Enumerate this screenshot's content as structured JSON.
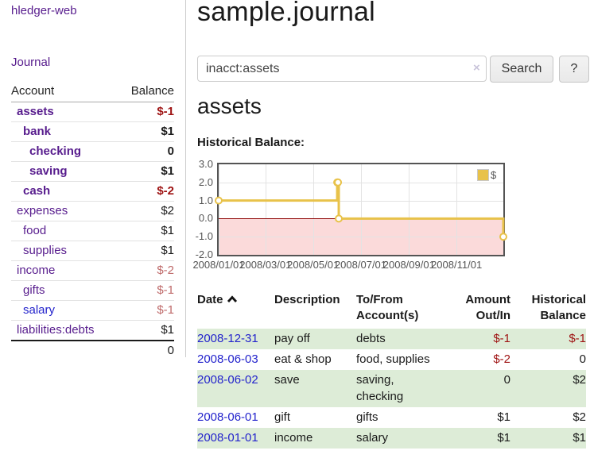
{
  "app": {
    "brand": "hledger-web",
    "nav_journal": "Journal"
  },
  "colors": {
    "purple": "#571c8d",
    "blue": "#2323cc",
    "negStrong": "#9e1212",
    "negSoft": "#bf6a6a",
    "stripe": "#ddecd7",
    "gold": "#e8c24a",
    "pink": "#fbdada",
    "zeroLine": "#8b0000"
  },
  "sidebar": {
    "header": {
      "account": "Account",
      "balance": "Balance"
    },
    "rows": [
      {
        "account": "assets",
        "level": 1,
        "strong": true,
        "link": "purple",
        "balance": "$-1",
        "tone": "neg-strong"
      },
      {
        "account": "bank",
        "level": 2,
        "strong": true,
        "link": "purple",
        "balance": "$1",
        "tone": "plain"
      },
      {
        "account": "checking",
        "level": 3,
        "strong": true,
        "link": "purple",
        "balance": "0",
        "tone": "plain"
      },
      {
        "account": "saving",
        "level": 3,
        "strong": true,
        "link": "purple",
        "balance": "$1",
        "tone": "plain"
      },
      {
        "account": "cash",
        "level": 2,
        "strong": true,
        "link": "purple",
        "balance": "$-2",
        "tone": "neg-strong"
      },
      {
        "account": "expenses",
        "level": 1,
        "strong": false,
        "link": "purple",
        "balance": "$2",
        "tone": "plain"
      },
      {
        "account": "food",
        "level": 2,
        "strong": false,
        "link": "purple",
        "balance": "$1",
        "tone": "plain"
      },
      {
        "account": "supplies",
        "level": 2,
        "strong": false,
        "link": "purple",
        "balance": "$1",
        "tone": "plain"
      },
      {
        "account": "income",
        "level": 1,
        "strong": false,
        "link": "purple",
        "balance": "$-2",
        "tone": "neg-soft"
      },
      {
        "account": "gifts",
        "level": 2,
        "strong": false,
        "link": "purple",
        "balance": "$-1",
        "tone": "neg-soft"
      },
      {
        "account": "salary",
        "level": 2,
        "strong": false,
        "link": "blue",
        "balance": "$-1",
        "tone": "neg-soft"
      },
      {
        "account": "liabilities:debts",
        "level": 1,
        "strong": false,
        "link": "purple",
        "balance": "$1",
        "tone": "plain"
      }
    ],
    "total": "0"
  },
  "main": {
    "title": "sample.journal",
    "search": {
      "value": "inacct:assets",
      "clear_icon": "×",
      "search_label": "Search",
      "help_label": "?"
    },
    "account_heading": "assets",
    "chart_label": "Historical Balance:"
  },
  "chart_data": {
    "type": "line",
    "step": true,
    "title": "Historical Balance",
    "series": [
      {
        "name": "$",
        "points": [
          [
            "2008-01-01",
            1
          ],
          [
            "2008-06-01",
            2
          ],
          [
            "2008-06-02",
            2
          ],
          [
            "2008-06-03",
            0
          ],
          [
            "2008-12-31",
            -1
          ]
        ]
      }
    ],
    "ylim": [
      -2.0,
      3.0
    ],
    "yticks": [
      3.0,
      2.0,
      1.0,
      0.0,
      -1.0,
      -2.0
    ],
    "xticks": [
      "2008/01/01",
      "2008/03/01",
      "2008/05/01",
      "2008/07/01",
      "2008/09/01",
      "2008/11/01"
    ],
    "x_range": [
      "2008-01-01",
      "2008-12-31"
    ],
    "negative_region_below": 0,
    "grid": true,
    "legend": {
      "label": "$",
      "position": "top-right"
    }
  },
  "register": {
    "headers": {
      "date": "Date",
      "description": "Description",
      "tofrom": "To/From Account(s)",
      "amount": "Amount Out/In",
      "balance": "Historical Balance"
    },
    "rows": [
      {
        "date": "2008-12-31",
        "description": "pay off",
        "accounts": "debts",
        "amount": "$-1",
        "amount_tone": "neg-strong",
        "balance": "$-1",
        "balance_tone": "neg-strong",
        "stripe": true
      },
      {
        "date": "2008-06-03",
        "description": "eat & shop",
        "accounts": "food, supplies",
        "amount": "$-2",
        "amount_tone": "neg-strong",
        "balance": "0",
        "balance_tone": "plain",
        "stripe": false
      },
      {
        "date": "2008-06-02",
        "description": "save",
        "accounts": "saving, checking",
        "amount": "0",
        "amount_tone": "plain",
        "balance": "$2",
        "balance_tone": "plain",
        "stripe": true
      },
      {
        "date": "2008-06-01",
        "description": "gift",
        "accounts": "gifts",
        "amount": "$1",
        "amount_tone": "plain",
        "balance": "$2",
        "balance_tone": "plain",
        "stripe": false
      },
      {
        "date": "2008-01-01",
        "description": "income",
        "accounts": "salary",
        "amount": "$1",
        "amount_tone": "plain",
        "balance": "$1",
        "balance_tone": "plain",
        "stripe": true
      }
    ]
  }
}
